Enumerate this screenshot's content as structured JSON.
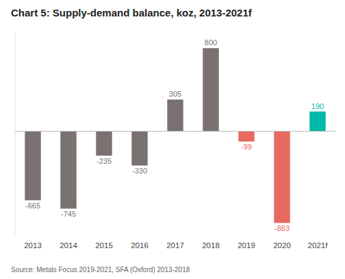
{
  "chart_data": {
    "type": "bar",
    "title": "Chart 5: Supply-demand balance, koz, 2013-2021f",
    "categories": [
      "2013",
      "2014",
      "2015",
      "2016",
      "2017",
      "2018",
      "2019",
      "2020",
      "2021f"
    ],
    "values": [
      -665,
      -745,
      -235,
      -330,
      305,
      800,
      -99,
      -883,
      190
    ],
    "colors": [
      "#7a7270",
      "#7a7270",
      "#7a7270",
      "#7a7270",
      "#7a7270",
      "#7a7270",
      "#e8695e",
      "#e8695e",
      "#00b8a9"
    ],
    "ylim": [
      -1020,
      960
    ],
    "data_labels": true,
    "tick_labels": "x",
    "annotations": [
      "Source: Metals Focus 2019-2021, SFA (Oxford) 2013-2018"
    ]
  }
}
